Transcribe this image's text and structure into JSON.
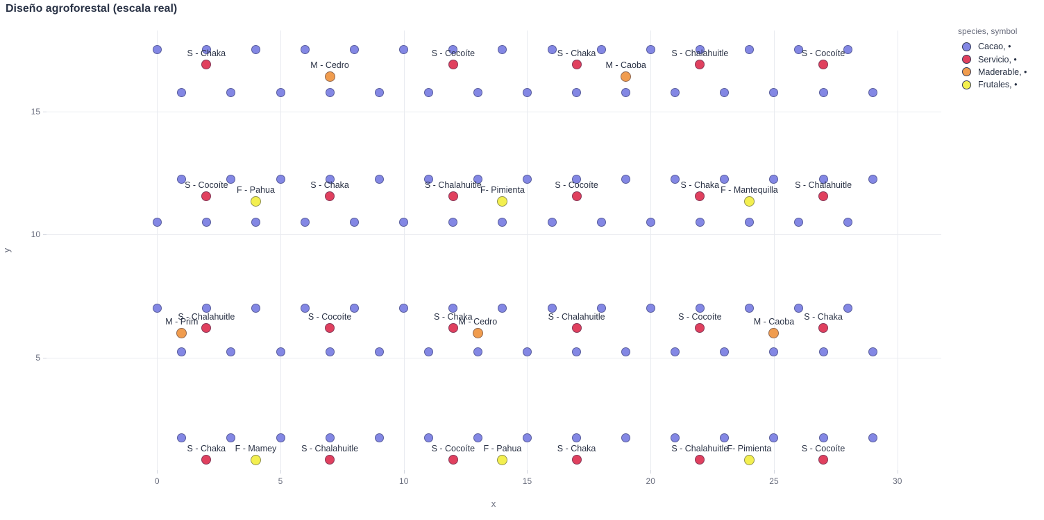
{
  "chart_data": {
    "type": "scatter",
    "title": "Diseño agroforestal (escala real)",
    "xlabel": "x",
    "ylabel": "y",
    "xlim": [
      -4.48,
      31.78
    ],
    "ylim": [
      0.44,
      18.28
    ],
    "x_ticks": [
      0,
      5,
      10,
      15,
      20,
      25,
      30
    ],
    "y_ticks": [
      5,
      10,
      15
    ],
    "grid": true,
    "equal_aspect": true,
    "legend_title": "species, symbol",
    "legend_position": "top-right",
    "series": [
      {
        "name": "Cacao, •",
        "color": "#8387e4",
        "marker_size": 13,
        "rows": [
          {
            "y": 17.5,
            "x": [
              0,
              2,
              4,
              6,
              8,
              10,
              12,
              14,
              16,
              18,
              20,
              22,
              24,
              26,
              28
            ]
          },
          {
            "y": 15.75,
            "x": [
              1,
              3,
              5,
              7,
              9,
              11,
              13,
              15,
              17,
              19,
              21,
              23,
              25,
              27,
              29
            ]
          },
          {
            "y": 12.25,
            "x": [
              1,
              3,
              5,
              7,
              9,
              11,
              13,
              15,
              17,
              19,
              21,
              23,
              25,
              27,
              29
            ]
          },
          {
            "y": 10.5,
            "x": [
              0,
              2,
              4,
              6,
              8,
              10,
              12,
              14,
              16,
              18,
              20,
              22,
              24,
              26,
              28
            ]
          },
          {
            "y": 7,
            "x": [
              0,
              2,
              4,
              6,
              8,
              10,
              12,
              14,
              16,
              18,
              20,
              22,
              24,
              26,
              28
            ]
          },
          {
            "y": 5.25,
            "x": [
              1,
              3,
              5,
              7,
              9,
              11,
              13,
              15,
              17,
              19,
              21,
              23,
              25,
              27,
              29
            ]
          },
          {
            "y": 1.75,
            "x": [
              1,
              3,
              5,
              7,
              9,
              11,
              13,
              15,
              17,
              19,
              21,
              23,
              25,
              27,
              29
            ]
          }
        ]
      },
      {
        "name": "Servicio, •",
        "color": "#e0405e",
        "marker_size": 14,
        "points": [
          {
            "x": 2,
            "y": 16.9,
            "label": "S - Chaka"
          },
          {
            "x": 12,
            "y": 16.9,
            "label": "S - Cocoíte"
          },
          {
            "x": 17,
            "y": 16.9,
            "label": "S - Chaka"
          },
          {
            "x": 22,
            "y": 16.9,
            "label": "S - Chalahuitle"
          },
          {
            "x": 27,
            "y": 16.9,
            "label": "S - Cocoíte"
          },
          {
            "x": 2,
            "y": 11.55,
            "label": "S - Cocoíte"
          },
          {
            "x": 7,
            "y": 11.55,
            "label": "S - Chaka"
          },
          {
            "x": 12,
            "y": 11.55,
            "label": "S - Chalahuitle"
          },
          {
            "x": 17,
            "y": 11.55,
            "label": "S - Cocoíte"
          },
          {
            "x": 22,
            "y": 11.55,
            "label": "S - Chaka"
          },
          {
            "x": 27,
            "y": 11.55,
            "label": "S - Chalahuitle"
          },
          {
            "x": 2,
            "y": 6.2,
            "label": "S - Chalahuitle"
          },
          {
            "x": 7,
            "y": 6.2,
            "label": "S - Cocoíte"
          },
          {
            "x": 12,
            "y": 6.2,
            "label": "S - Chaka"
          },
          {
            "x": 17,
            "y": 6.2,
            "label": "S - Chalahuitle"
          },
          {
            "x": 22,
            "y": 6.2,
            "label": "S - Cocoíte"
          },
          {
            "x": 27,
            "y": 6.2,
            "label": "S - Chaka"
          },
          {
            "x": 2,
            "y": 0.85,
            "label": "S - Chaka"
          },
          {
            "x": 7,
            "y": 0.85,
            "label": "S - Chalahuitle"
          },
          {
            "x": 12,
            "y": 0.85,
            "label": "S - Cocoíte"
          },
          {
            "x": 17,
            "y": 0.85,
            "label": "S - Chaka"
          },
          {
            "x": 22,
            "y": 0.85,
            "label": "S - Chalahuitle"
          },
          {
            "x": 27,
            "y": 0.85,
            "label": "S - Cocoíte"
          }
        ]
      },
      {
        "name": "Maderable, •",
        "color": "#f09c4e",
        "marker_size": 15,
        "points": [
          {
            "x": 7,
            "y": 16.4,
            "label": "M - Cedro"
          },
          {
            "x": 19,
            "y": 16.4,
            "label": "M - Caoba"
          },
          {
            "x": 1,
            "y": 6.0,
            "label": "M - Prim"
          },
          {
            "x": 13,
            "y": 6.0,
            "label": "M - Cedro"
          },
          {
            "x": 25,
            "y": 6.0,
            "label": "M - Caoba"
          }
        ]
      },
      {
        "name": "Frutales, •",
        "color": "#f3ef4f",
        "marker_size": 15,
        "points": [
          {
            "x": 4,
            "y": 11.33,
            "label": "F - Pahua"
          },
          {
            "x": 14,
            "y": 11.33,
            "label": "F- Pimienta"
          },
          {
            "x": 24,
            "y": 11.33,
            "label": "F - Mantequilla"
          },
          {
            "x": 4,
            "y": 0.85,
            "label": "F - Mamey"
          },
          {
            "x": 14,
            "y": 0.85,
            "label": "F - Pahua"
          },
          {
            "x": 24,
            "y": 0.85,
            "label": "F- Pimienta"
          }
        ]
      }
    ]
  }
}
